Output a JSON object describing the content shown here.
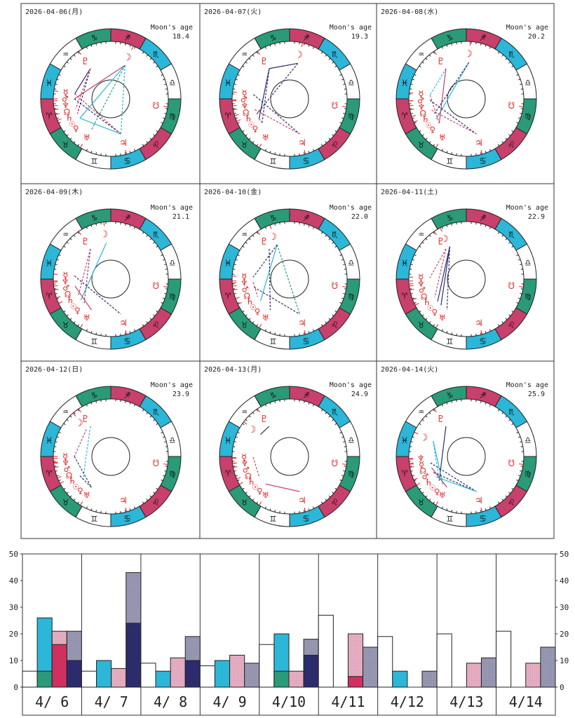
{
  "colors": {
    "pink": "#c8406c",
    "green": "#2a9a78",
    "cyan": "#2cb6d8",
    "white": "#ffffff",
    "navy": "#2c2c6c",
    "gray": "#9a9ab4",
    "lightpink": "#e8b0c4",
    "red": "#d03060",
    "glyph": "#e02020"
  },
  "moon_age_label": "Moon's age",
  "signs": [
    "♈",
    "♉",
    "♊",
    "♋",
    "♌",
    "♍",
    "♎",
    "♏",
    "♐",
    "♑",
    "♒",
    "♓"
  ],
  "planet_glyphs": {
    "moon": "☽",
    "sun": "☉",
    "mercury": "☿",
    "venus": "♀",
    "mars": "♂",
    "jupiter": "♃",
    "saturn": "♄",
    "uranus": "♅",
    "neptune": "♆",
    "pluto": "♇",
    "node": "☊",
    "snode": "☋"
  },
  "charts": [
    {
      "date": "2026-04-06(月)",
      "moon_age": "18.4",
      "planets": {
        "moon": 247,
        "pluto": 304,
        "mercury": 352,
        "mars": 0,
        "neptune": 2,
        "node": 7,
        "saturn": 11,
        "sun": 16,
        "venus": 22,
        "uranus": 58,
        "jupiter": 106,
        "snode": 172
      },
      "aspects": [
        [
          "moon",
          "mars",
          "pink",
          0
        ],
        [
          "moon",
          "sun",
          "cyan",
          0
        ],
        [
          "moon",
          "jupiter",
          "cyan",
          1
        ],
        [
          "moon",
          "uranus",
          "green",
          1
        ],
        [
          "pluto",
          "mercury",
          "navy",
          0
        ],
        [
          "pluto",
          "saturn",
          "navy",
          1
        ],
        [
          "pluto",
          "node",
          "pink",
          1
        ],
        [
          "sun",
          "jupiter",
          "cyan",
          0
        ],
        [
          "mars",
          "jupiter",
          "navy",
          1
        ],
        [
          "mercury",
          "jupiter",
          "pink",
          1
        ]
      ]
    },
    {
      "date": "2026-04-07(火)",
      "moon_age": "19.3",
      "planets": {
        "moon": 257,
        "pluto": 304,
        "mercury": 353,
        "mars": 1,
        "neptune": 2,
        "node": 7,
        "saturn": 11,
        "sun": 17,
        "venus": 23,
        "uranus": 58,
        "jupiter": 106,
        "snode": 172
      },
      "aspects": [
        [
          "moon",
          "pluto",
          "navy",
          0
        ],
        [
          "pluto",
          "sun",
          "navy",
          0
        ],
        [
          "pluto",
          "venus",
          "navy",
          1
        ],
        [
          "moon",
          "saturn",
          "navy",
          1
        ],
        [
          "mercury",
          "jupiter",
          "navy",
          1
        ],
        [
          "node",
          "jupiter",
          "pink",
          1
        ],
        [
          "sun",
          "venus",
          "pink",
          1
        ]
      ]
    },
    {
      "date": "2026-04-08(水)",
      "moon_age": "20.2",
      "planets": {
        "moon": 266,
        "pluto": 304,
        "mercury": 354,
        "mars": 2,
        "neptune": 2,
        "node": 7,
        "saturn": 11,
        "sun": 18,
        "venus": 24,
        "uranus": 58,
        "jupiter": 106,
        "snode": 172
      },
      "aspects": [
        [
          "moon",
          "sun",
          "cyan",
          0
        ],
        [
          "moon",
          "saturn",
          "navy",
          1
        ],
        [
          "pluto",
          "mercury",
          "cyan",
          1
        ],
        [
          "pluto",
          "venus",
          "pink",
          0
        ],
        [
          "mars",
          "jupiter",
          "navy",
          1
        ],
        [
          "node",
          "jupiter",
          "pink",
          1
        ],
        [
          "mercury",
          "venus",
          "pink",
          1
        ]
      ]
    },
    {
      "date": "2026-04-09(木)",
      "moon_age": "21.1",
      "planets": {
        "moon": 277,
        "pluto": 304,
        "mercury": 355,
        "mars": 3,
        "neptune": 2,
        "node": 7,
        "saturn": 11,
        "sun": 19,
        "venus": 25,
        "uranus": 58,
        "jupiter": 106,
        "snode": 172
      },
      "aspects": [
        [
          "moon",
          "sun",
          "cyan",
          0
        ],
        [
          "pluto",
          "saturn",
          "pink",
          1
        ],
        [
          "pluto",
          "venus",
          "purple",
          1
        ],
        [
          "mercury",
          "jupiter",
          "navy",
          1
        ],
        [
          "mars",
          "uranus",
          "pink",
          0
        ]
      ]
    },
    {
      "date": "2026-04-10(金)",
      "moon_age": "22.0",
      "planets": {
        "moon": 290,
        "pluto": 304,
        "mercury": 357,
        "mars": 4,
        "neptune": 2,
        "node": 7,
        "saturn": 11,
        "sun": 20,
        "venus": 26,
        "uranus": 58,
        "jupiter": 106,
        "snode": 172
      },
      "aspects": [
        [
          "moon",
          "sun",
          "cyan",
          0
        ],
        [
          "moon",
          "jupiter",
          "green",
          1
        ],
        [
          "moon",
          "mercury",
          "navy",
          1
        ],
        [
          "pluto",
          "uranus",
          "navy",
          1
        ],
        [
          "mars",
          "jupiter",
          "navy",
          1
        ],
        [
          "neptune",
          "saturn",
          "pink",
          1
        ]
      ]
    },
    {
      "date": "2026-04-11(土)",
      "moon_age": "22.9",
      "planets": {
        "moon": 297,
        "pluto": 304,
        "mercury": 358,
        "mars": 5,
        "neptune": 2,
        "node": 7,
        "saturn": 11,
        "sun": 21,
        "venus": 27,
        "uranus": 58,
        "jupiter": 106,
        "snode": 172
      },
      "aspects": [
        [
          "moon",
          "sun",
          "navy",
          0
        ],
        [
          "moon",
          "venus",
          "navy",
          0
        ],
        [
          "moon",
          "uranus",
          "navy",
          1
        ],
        [
          "pluto",
          "mercury",
          "pink",
          1
        ],
        [
          "pluto",
          "saturn",
          "pink",
          1
        ]
      ]
    },
    {
      "date": "2026-04-12(日)",
      "moon_age": "23.9",
      "planets": {
        "moon": 311,
        "pluto": 304,
        "mercury": 0,
        "mars": 6,
        "neptune": 2,
        "node": 7,
        "saturn": 11,
        "sun": 22,
        "venus": 28,
        "uranus": 58,
        "jupiter": 106,
        "snode": 172
      },
      "aspects": [
        [
          "moon",
          "mercury",
          "pink",
          1
        ],
        [
          "pluto",
          "sun",
          "cyan",
          1
        ],
        [
          "mercury",
          "uranus",
          "navy",
          1
        ],
        [
          "saturn",
          "uranus",
          "navy",
          1
        ]
      ]
    },
    {
      "date": "2026-04-13(月)",
      "moon_age": "24.9",
      "planets": {
        "moon": 323,
        "pluto": 304,
        "mercury": 1,
        "mars": 7,
        "neptune": 2,
        "node": 7,
        "saturn": 11,
        "sun": 23,
        "venus": 29,
        "uranus": 58,
        "jupiter": 106,
        "snode": 172
      },
      "aspects": [
        [
          "moon",
          "pluto",
          "navy",
          0
        ],
        [
          "venus",
          "jupiter",
          "pink",
          0
        ],
        [
          "mercury",
          "saturn",
          "pink",
          1
        ]
      ]
    },
    {
      "date": "2026-04-14(火)",
      "moon_age": "25.9",
      "planets": {
        "moon": 335,
        "pluto": 304,
        "mercury": 3,
        "mars": 8,
        "neptune": 2,
        "node": 7,
        "saturn": 11,
        "sun": 24,
        "venus": 30,
        "uranus": 58,
        "jupiter": 106,
        "snode": 172
      },
      "aspects": [
        [
          "pluto",
          "sun",
          "navy",
          0
        ],
        [
          "moon",
          "sun",
          "cyan",
          1
        ],
        [
          "moon",
          "venus",
          "cyan",
          0
        ],
        [
          "mercury",
          "jupiter",
          "navy",
          1
        ],
        [
          "mars",
          "jupiter",
          "navy",
          1
        ],
        [
          "node",
          "uranus",
          "pink",
          0
        ],
        [
          "saturn",
          "jupiter",
          "cyan",
          0
        ]
      ]
    }
  ],
  "chart_data": {
    "type": "bar",
    "categories": [
      "4/ 6",
      "4/ 7",
      "4/ 8",
      "4/ 9",
      "4/10",
      "4/11",
      "4/12",
      "4/13",
      "4/14"
    ],
    "ylim": [
      0,
      50
    ],
    "yticks": [
      "0",
      "10",
      "20",
      "30",
      "40",
      "50"
    ],
    "series": [
      {
        "name": "white",
        "values": [
          6,
          6,
          9,
          8,
          16,
          27,
          19,
          20,
          21
        ]
      },
      {
        "name": "cyan",
        "values": [
          26,
          10,
          6,
          10,
          20,
          0,
          6,
          0,
          0
        ],
        "inner": [
          6,
          0,
          0,
          0,
          6,
          0,
          0,
          0,
          0
        ]
      },
      {
        "name": "pink",
        "values": [
          21,
          7,
          11,
          12,
          6,
          20,
          0,
          9,
          9
        ],
        "inner": [
          16,
          0,
          0,
          0,
          0,
          4,
          0,
          0,
          0
        ]
      },
      {
        "name": "gray",
        "values": [
          21,
          43,
          19,
          9,
          18,
          15,
          6,
          11,
          15
        ],
        "inner": [
          10,
          24,
          10,
          0,
          12,
          0,
          0,
          0,
          0
        ]
      }
    ]
  }
}
